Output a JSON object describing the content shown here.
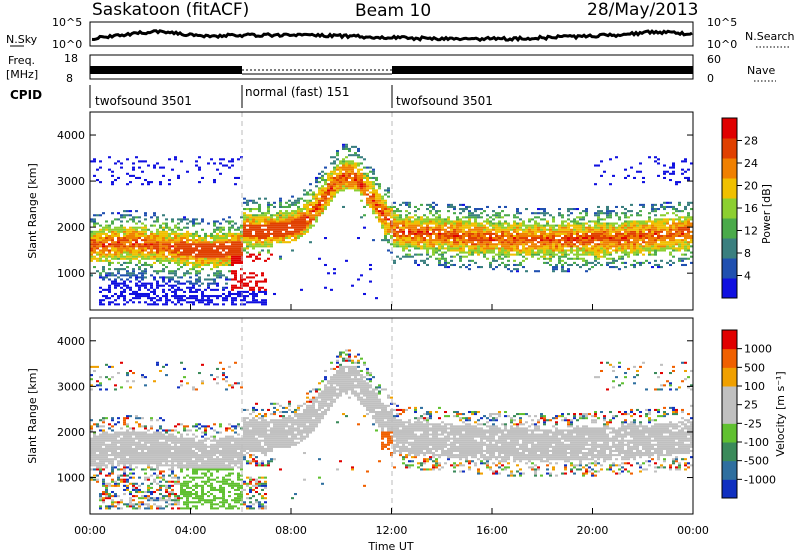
{
  "header": {
    "station": "Saskatoon (fitACF)",
    "beam": "Beam 10",
    "date": "28/May/2013"
  },
  "panels": {
    "nsky": {
      "left_label": "N.Sky",
      "right_label": "N.Search",
      "left_ticks": [
        "10^5",
        "10^0"
      ],
      "right_ticks": [
        "10^5",
        "10^0"
      ]
    },
    "freq": {
      "left_label": "Freq.",
      "left_unit": "[MHz]",
      "left_ticks": [
        "18",
        "8"
      ],
      "right_label": "Nave",
      "right_ticks": [
        "60",
        "0"
      ]
    },
    "cpid": {
      "label": "CPID",
      "segments": [
        {
          "name": "twofsound 3501",
          "start": 0,
          "end": 6
        },
        {
          "name": "normal (fast) 151",
          "start": 6,
          "end": 12
        },
        {
          "name": "twofsound 3501",
          "start": 12,
          "end": 24
        }
      ]
    }
  },
  "chart_data": [
    {
      "type": "heatmap",
      "name": "power",
      "ylabel": "Slant Range [km]",
      "xlabel": "Time UT",
      "xlim": [
        0,
        24
      ],
      "ylim": [
        200,
        4500
      ],
      "yticks": [
        "1000",
        "2000",
        "3000",
        "4000"
      ],
      "xticks": [
        "00:00",
        "04:00",
        "08:00",
        "12:00",
        "16:00",
        "20:00",
        "00:00"
      ],
      "colorbar": {
        "label": "Power [dB]",
        "ticks": [
          "4",
          "8",
          "12",
          "16",
          "20",
          "24",
          "28"
        ],
        "colors": [
          "#1010e0",
          "#2050b0",
          "#3a7f7f",
          "#4aaa4a",
          "#8ccf30",
          "#f0c000",
          "#f08000",
          "#e04000",
          "#e00000"
        ]
      }
    },
    {
      "type": "heatmap",
      "name": "velocity",
      "ylabel": "Slant Range [km]",
      "xlabel": "Time UT",
      "xlim": [
        0,
        24
      ],
      "ylim": [
        200,
        4500
      ],
      "yticks": [
        "1000",
        "2000",
        "3000",
        "4000"
      ],
      "xticks": [
        "00:00",
        "04:00",
        "08:00",
        "12:00",
        "16:00",
        "20:00",
        "00:00"
      ],
      "colorbar": {
        "label": "Velocity [m s⁻¹]",
        "ticks": [
          "1000",
          "500",
          "100",
          "25",
          "-25",
          "-100",
          "-500",
          "-1000"
        ],
        "colors": [
          "#1030c0",
          "#2f6f9f",
          "#3a8a5a",
          "#60c030",
          "#c0c0c0",
          "#c0c0c0",
          "#f0a000",
          "#f06000",
          "#e00000"
        ]
      }
    }
  ]
}
